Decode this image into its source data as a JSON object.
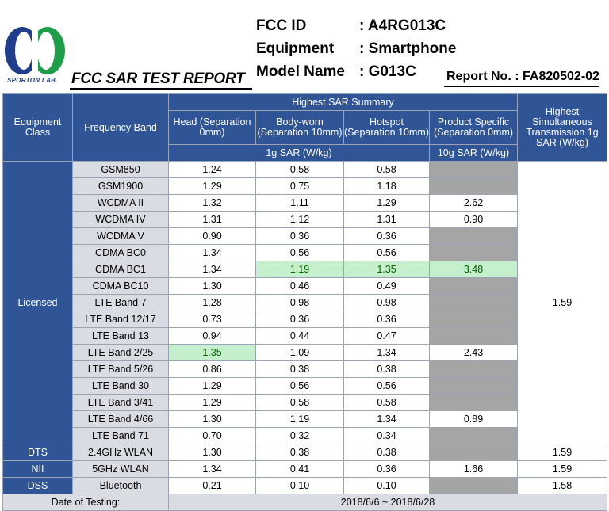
{
  "header": {
    "logo_text": "SPORTON LAB.",
    "report_title": "FCC SAR TEST REPORT",
    "fields": [
      {
        "label": "FCC ID",
        "value": ": A4RG013C"
      },
      {
        "label": "Equipment",
        "value": ": Smartphone"
      },
      {
        "label": "Model Name",
        "value": ": G013C"
      }
    ],
    "report_no": "Report No. : FA820502-02"
  },
  "table": {
    "col_equipment_class": "Equipment Class",
    "col_frequency_band": "Frequency Band",
    "col_summary": "Highest SAR Summary",
    "col_head": "Head (Separation 0mm)",
    "col_body": "Body-worn (Separation 10mm)",
    "col_hotspot": "Hotspot (Separation 10mm)",
    "col_product": "Product Specific (Separation 0mm)",
    "col_simul": "Highest Simultaneous Transmission 1g SAR (W/kg)",
    "unit_1g": "1g SAR (W/kg)",
    "unit_10g": "10g SAR (W/kg)",
    "licensed_label": "Licensed",
    "licensed_simul": "1.59",
    "licensed_rows": [
      {
        "band": "GSM850",
        "head": "1.24",
        "body": "0.58",
        "hotspot": "0.58",
        "product": ""
      },
      {
        "band": "GSM1900",
        "head": "1.29",
        "body": "0.75",
        "hotspot": "1.18",
        "product": ""
      },
      {
        "band": "WCDMA II",
        "head": "1.32",
        "body": "1.11",
        "hotspot": "1.29",
        "product": "2.62"
      },
      {
        "band": "WCDMA IV",
        "head": "1.31",
        "body": "1.12",
        "hotspot": "1.31",
        "product": "0.90"
      },
      {
        "band": "WCDMA V",
        "head": "0.90",
        "body": "0.36",
        "hotspot": "0.36",
        "product": ""
      },
      {
        "band": "CDMA BC0",
        "head": "1.34",
        "body": "0.56",
        "hotspot": "0.56",
        "product": ""
      },
      {
        "band": "CDMA BC1",
        "head": "1.34",
        "body": "1.19",
        "hotspot": "1.35",
        "product": "3.48"
      },
      {
        "band": "CDMA BC10",
        "head": "1.30",
        "body": "0.46",
        "hotspot": "0.49",
        "product": ""
      },
      {
        "band": "LTE Band 7",
        "head": "1.28",
        "body": "0.98",
        "hotspot": "0.98",
        "product": ""
      },
      {
        "band": "LTE Band 12/17",
        "head": "0.73",
        "body": "0.36",
        "hotspot": "0.36",
        "product": ""
      },
      {
        "band": "LTE Band 13",
        "head": "0.94",
        "body": "0.44",
        "hotspot": "0.47",
        "product": ""
      },
      {
        "band": "LTE Band 2/25",
        "head": "1.35",
        "body": "1.09",
        "hotspot": "1.34",
        "product": "2.43"
      },
      {
        "band": "LTE Band 5/26",
        "head": "0.86",
        "body": "0.38",
        "hotspot": "0.38",
        "product": ""
      },
      {
        "band": "LTE Band 30",
        "head": "1.29",
        "body": "0.56",
        "hotspot": "0.56",
        "product": ""
      },
      {
        "band": "LTE Band 3/41",
        "head": "1.29",
        "body": "0.58",
        "hotspot": "0.58",
        "product": ""
      },
      {
        "band": "LTE Band 4/66",
        "head": "1.30",
        "body": "1.19",
        "hotspot": "1.34",
        "product": "0.89"
      },
      {
        "band": "LTE Band 71",
        "head": "0.70",
        "body": "0.32",
        "hotspot": "0.34",
        "product": ""
      }
    ],
    "other_rows": [
      {
        "cls": "DTS",
        "band": "2.4GHz WLAN",
        "head": "1.30",
        "body": "0.38",
        "hotspot": "0.38",
        "product": "",
        "simul": "1.59"
      },
      {
        "cls": "NII",
        "band": "5GHz WLAN",
        "head": "1.34",
        "body": "0.41",
        "hotspot": "0.36",
        "product": "1.66",
        "simul": "1.59"
      },
      {
        "cls": "DSS",
        "band": "Bluetooth",
        "head": "0.21",
        "body": "0.10",
        "hotspot": "0.10",
        "product": "",
        "simul": "1.58"
      }
    ],
    "date_label": "Date of Testing:",
    "date_value": "2018/6/6 ~ 2018/6/28"
  },
  "colors": {
    "header_blue": "#2f5597",
    "band_gray": "#d9dce2",
    "highlight_green": "#c6efce",
    "na_gray": "#a5a5a5"
  }
}
